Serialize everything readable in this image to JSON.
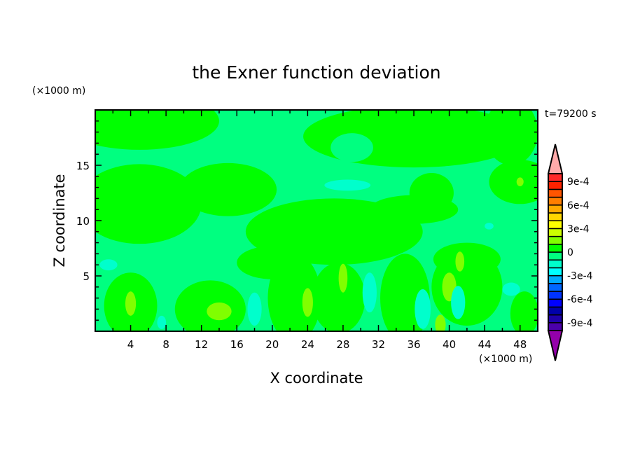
{
  "chart_data": {
    "type": "heatmap",
    "title": "the Exner function deviation",
    "xlabel": "X coordinate",
    "ylabel": "Z coordinate",
    "x_unit": "(×1000 m)",
    "y_unit": "(×1000 m)",
    "time_label": "t=79200 s",
    "xlim": [
      0,
      50
    ],
    "ylim": [
      0,
      20
    ],
    "x_ticks": [
      4,
      8,
      12,
      16,
      20,
      24,
      28,
      32,
      36,
      40,
      44,
      48
    ],
    "y_ticks": [
      5,
      10,
      15
    ],
    "colorbar": {
      "levels": [
        -0.001,
        -0.0009,
        -0.0008,
        -0.0007,
        -0.0006,
        -0.0005,
        -0.0004,
        -0.0003,
        -0.0002,
        -0.0001,
        0,
        0.0001,
        0.0002,
        0.0003,
        0.0004,
        0.0005,
        0.0006,
        0.0007,
        0.0008,
        0.0009,
        0.001
      ],
      "colors_low_to_high": [
        "#4b00aa",
        "#1e00aa",
        "#0000aa",
        "#0000ff",
        "#0033ff",
        "#0066ff",
        "#00aaff",
        "#00ffff",
        "#00ffcc",
        "#00ff80",
        "#00ff00",
        "#80ff00",
        "#ccff00",
        "#ffff00",
        "#ffd700",
        "#ffaa00",
        "#ff7f00",
        "#ff5500",
        "#ff2200",
        "#ff2a2a"
      ],
      "under_color": "#9400aa",
      "over_color": "#ffaaaa",
      "tick_labels": [
        {
          "value": 0.0009,
          "label": "9e-4"
        },
        {
          "value": 0.0006,
          "label": "6e-4"
        },
        {
          "value": 0.0003,
          "label": "3e-4"
        },
        {
          "value": 0,
          "label": "0"
        },
        {
          "value": -0.0003,
          "label": "-3e-4"
        },
        {
          "value": -0.0006,
          "label": "-6e-4"
        },
        {
          "value": -0.0009,
          "label": "-9e-4"
        }
      ]
    },
    "background_value": -5e-05,
    "regions": [
      {
        "x": 5,
        "z": 19,
        "rx": 9,
        "rz": 2.6,
        "value": 5e-05
      },
      {
        "x": 5,
        "z": 11.5,
        "rx": 7,
        "rz": 3.6,
        "value": 5e-05
      },
      {
        "x": 15,
        "z": 12.8,
        "rx": 5.5,
        "rz": 2.4,
        "value": 5e-05
      },
      {
        "x": 36,
        "z": 17.6,
        "rx": 12.5,
        "rz": 2.8,
        "value": 5e-05
      },
      {
        "x": 47,
        "z": 18,
        "rx": 3,
        "rz": 3,
        "value": 5e-05
      },
      {
        "x": 48,
        "z": 13.5,
        "rx": 3.5,
        "rz": 2,
        "value": 5e-05
      },
      {
        "x": 38,
        "z": 12.5,
        "rx": 2.5,
        "rz": 1.8,
        "value": 5e-05
      },
      {
        "x": 27,
        "z": 9,
        "rx": 10,
        "rz": 3,
        "value": 5e-05
      },
      {
        "x": 36,
        "z": 11,
        "rx": 5,
        "rz": 1.3,
        "value": 5e-05
      },
      {
        "x": 20,
        "z": 6.2,
        "rx": 4,
        "rz": 1.5,
        "value": 5e-05
      },
      {
        "x": 4,
        "z": 2.3,
        "rx": 3,
        "rz": 3,
        "value": 5e-05
      },
      {
        "x": 13,
        "z": 2,
        "rx": 4,
        "rz": 2.6,
        "value": 5e-05
      },
      {
        "x": 22.5,
        "z": 3,
        "rx": 3,
        "rz": 4,
        "value": 5e-05
      },
      {
        "x": 27.5,
        "z": 3,
        "rx": 3,
        "rz": 3.2,
        "value": 5e-05
      },
      {
        "x": 35,
        "z": 3,
        "rx": 2.8,
        "rz": 4,
        "value": 5e-05
      },
      {
        "x": 42,
        "z": 4,
        "rx": 4,
        "rz": 3.5,
        "value": 5e-05
      },
      {
        "x": 42,
        "z": 6.5,
        "rx": 3.8,
        "rz": 1.5,
        "value": 5e-05
      },
      {
        "x": 48.5,
        "z": 1.6,
        "rx": 1.6,
        "rz": 2,
        "value": 5e-05
      },
      {
        "x": 29,
        "z": 16.6,
        "rx": 2.4,
        "rz": 1.3,
        "value": -5e-05
      },
      {
        "x": 4,
        "z": 2.5,
        "rx": 0.6,
        "rz": 1.1,
        "value": 0.00015
      },
      {
        "x": 14,
        "z": 1.8,
        "rx": 1.4,
        "rz": 0.8,
        "value": 0.00015
      },
      {
        "x": 24,
        "z": 2.6,
        "rx": 0.6,
        "rz": 1.3,
        "value": 0.00015
      },
      {
        "x": 28,
        "z": 4.8,
        "rx": 0.5,
        "rz": 1.3,
        "value": 0.00015
      },
      {
        "x": 40,
        "z": 4,
        "rx": 0.8,
        "rz": 1.3,
        "value": 0.00015
      },
      {
        "x": 41.2,
        "z": 6.3,
        "rx": 0.5,
        "rz": 0.9,
        "value": 0.00015
      },
      {
        "x": 39,
        "z": 0.6,
        "rx": 0.6,
        "rz": 0.9,
        "value": 0.00015
      },
      {
        "x": 48,
        "z": 13.5,
        "rx": 0.4,
        "rz": 0.4,
        "value": 0.00015
      },
      {
        "x": 28.5,
        "z": 13.2,
        "rx": 2.6,
        "rz": 0.5,
        "value": -0.00015
      },
      {
        "x": 18,
        "z": 2,
        "rx": 0.8,
        "rz": 1.5,
        "value": -0.00015
      },
      {
        "x": 31,
        "z": 3.5,
        "rx": 0.8,
        "rz": 1.8,
        "value": -0.00015
      },
      {
        "x": 37,
        "z": 2,
        "rx": 0.9,
        "rz": 1.8,
        "value": -0.00015
      },
      {
        "x": 41,
        "z": 2.6,
        "rx": 0.8,
        "rz": 1.5,
        "value": -0.00015
      },
      {
        "x": 1.5,
        "z": 6,
        "rx": 1,
        "rz": 0.5,
        "value": -0.00015
      },
      {
        "x": 47,
        "z": 3.8,
        "rx": 1,
        "rz": 0.6,
        "value": -0.00015
      },
      {
        "x": 7.5,
        "z": 0.8,
        "rx": 0.5,
        "rz": 0.6,
        "value": -0.00015
      },
      {
        "x": 44.5,
        "z": 9.5,
        "rx": 0.5,
        "rz": 0.3,
        "value": -0.00015
      }
    ]
  }
}
